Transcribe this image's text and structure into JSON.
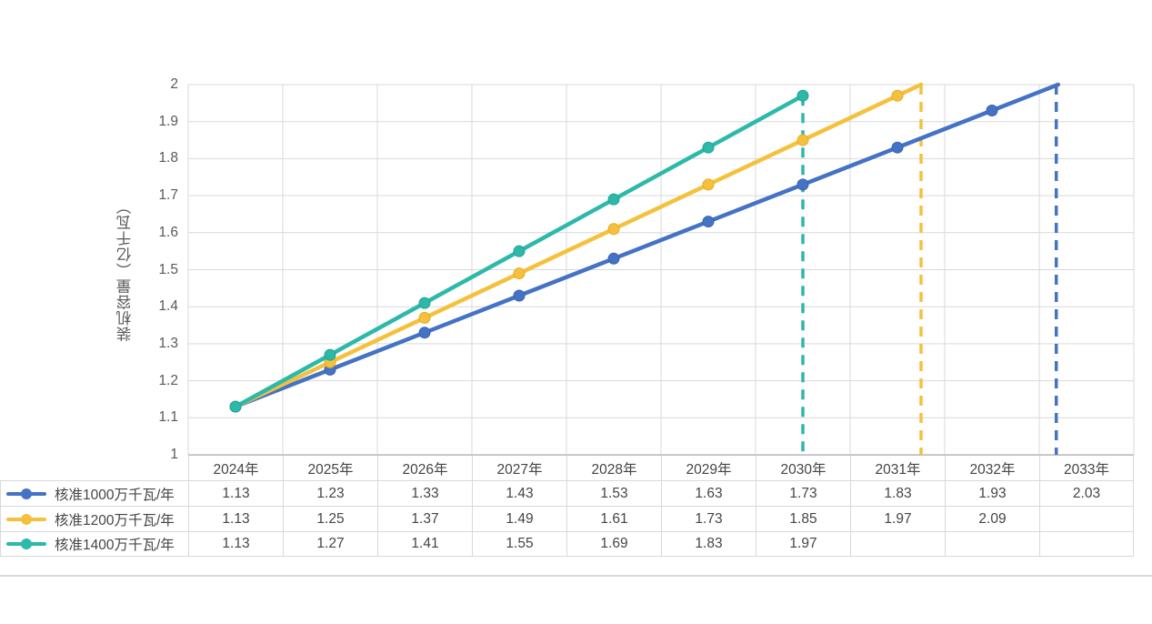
{
  "chart_data": {
    "type": "line",
    "title": "",
    "xlabel": "",
    "ylabel": "装机容量（亿千瓦）",
    "categories": [
      "2024年",
      "2025年",
      "2026年",
      "2027年",
      "2028年",
      "2029年",
      "2030年",
      "2031年",
      "2032年",
      "2033年"
    ],
    "ylim": [
      1,
      2
    ],
    "y_tick_labels": [
      "2",
      "1.9",
      "1.8",
      "1.7",
      "1.6",
      "1.5",
      "1.4",
      "1.3",
      "1.2",
      "1.1",
      "1"
    ],
    "grid": true,
    "legend_position": "data-table-left",
    "series": [
      {
        "name": "核准1000万千瓦/年",
        "color": "#4472C4",
        "marker_edge": "#3A63AE",
        "values": [
          1.13,
          1.23,
          1.33,
          1.43,
          1.53,
          1.63,
          1.73,
          1.83,
          1.93,
          2.03
        ]
      },
      {
        "name": "核准1200万千瓦/年",
        "color": "#F5C13C",
        "marker_edge": "#E3AC25",
        "values": [
          1.13,
          1.25,
          1.37,
          1.49,
          1.61,
          1.73,
          1.85,
          1.97,
          2.09,
          null
        ]
      },
      {
        "name": "核准1400万千瓦/年",
        "color": "#2DB9A9",
        "marker_edge": "#23A294",
        "values": [
          1.13,
          1.27,
          1.41,
          1.55,
          1.69,
          1.83,
          1.97,
          null,
          null,
          null
        ]
      }
    ],
    "dashed_guides": [
      {
        "x_index": 6.0,
        "from_value": 1.97,
        "color": "#2DB9A9"
      },
      {
        "x_index": 7.25,
        "from_value": 2.0,
        "color": "#F5C13C"
      },
      {
        "x_index": 8.68,
        "from_value": 2.0,
        "color": "#4472C4"
      }
    ]
  },
  "colors": {
    "grid": "#D9D9D9",
    "axis": "#BFBFBF",
    "tick_text": "#595959",
    "table_text": "#454545"
  }
}
